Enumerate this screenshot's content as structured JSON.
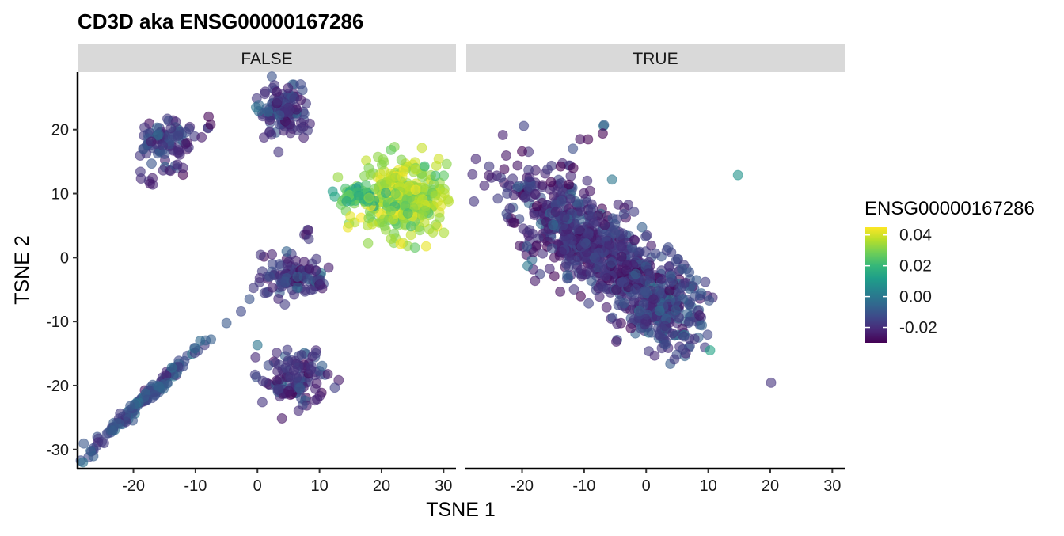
{
  "chart_data": {
    "type": "scatter",
    "title": "CD3D  aka ENSG00000167286",
    "xlabel": "TSNE 1",
    "ylabel": "TSNE 2",
    "facet_labels": [
      "FALSE",
      "TRUE"
    ],
    "xlim": [
      -29,
      32
    ],
    "ylim": [
      -33,
      29
    ],
    "x_ticks": [
      -20,
      -10,
      0,
      10,
      20,
      30
    ],
    "x_tick_labels": [
      "-20",
      "-10",
      "0",
      "10",
      "20",
      "30"
    ],
    "y_ticks": [
      -30,
      -20,
      -10,
      0,
      10,
      20
    ],
    "y_tick_labels": [
      "-30",
      "-20",
      "-10",
      "0",
      "10",
      "20"
    ],
    "grid": false,
    "legend": {
      "title": "ENSG00000167286",
      "position": "right",
      "colorscale": "viridis",
      "range": [
        -0.03,
        0.045
      ],
      "ticks": [
        0.04,
        0.02,
        0.0,
        -0.02
      ],
      "tick_labels": [
        "0.04",
        "0.02",
        "0.00",
        "-0.02"
      ],
      "colors": [
        "#440154",
        "#482878",
        "#3e4989",
        "#31688e",
        "#26828e",
        "#1f9e89",
        "#35b779",
        "#6ece58",
        "#b5de2b",
        "#fde725"
      ]
    },
    "point_opacity": 0.6,
    "panels": [
      {
        "label": "FALSE",
        "clusters": [
          {
            "cx": 4.5,
            "cy": 23,
            "sx": 1.8,
            "sy": 2.0,
            "n": 110,
            "value": -0.018
          },
          {
            "cx": 0.5,
            "cy": 23.3,
            "sx": 0.6,
            "sy": 0.5,
            "n": 6,
            "value": -0.01
          },
          {
            "cx": -15,
            "cy": 18.5,
            "sx": 2.0,
            "sy": 1.6,
            "n": 85,
            "value": -0.016
          },
          {
            "cx": -14,
            "cy": 13.8,
            "sx": 1.0,
            "sy": 0.6,
            "n": 8,
            "value": -0.02
          },
          {
            "cx": -18,
            "cy": 12.3,
            "sx": 0.8,
            "sy": 0.5,
            "n": 6,
            "value": -0.02
          },
          {
            "cx": -7.5,
            "cy": 20.4,
            "sx": 0.3,
            "sy": 0.6,
            "n": 4,
            "value": -0.025
          },
          {
            "cx": -9,
            "cy": 18.8,
            "sx": 0.2,
            "sy": 0.2,
            "n": 1,
            "value": -0.02
          },
          {
            "cx": 23.5,
            "cy": 9,
            "sx": 3.5,
            "sy": 2.8,
            "n": 320,
            "value": 0.033
          },
          {
            "cx": 16,
            "cy": 9.8,
            "sx": 2.2,
            "sy": 0.9,
            "n": 40,
            "value": 0.022
          },
          {
            "cx": 6,
            "cy": -3,
            "sx": 2.6,
            "sy": 1.6,
            "n": 110,
            "value": -0.017
          },
          {
            "cx": 8,
            "cy": 3.2,
            "sx": 0.3,
            "sy": 0.8,
            "n": 5,
            "value": -0.02
          },
          {
            "cx": 6,
            "cy": -19,
            "sx": 2.6,
            "sy": 2.2,
            "n": 120,
            "value": -0.018
          },
          {
            "cx": 0,
            "cy": -13.7,
            "sx": 0.2,
            "sy": 0.2,
            "n": 1,
            "value": -0.002
          },
          {
            "cx": -18.5,
            "cy": -22.5,
            "sx": 4.8,
            "sy": 4.5,
            "n": 150,
            "value": -0.012,
            "rho": 0.99
          }
        ]
      },
      {
        "label": "TRUE",
        "clusters": [
          {
            "cx": -9,
            "cy": 2,
            "sx": 6.8,
            "sy": 5.8,
            "n": 700,
            "value": -0.019,
            "rho": -0.72
          },
          {
            "cx": 3,
            "cy": -8,
            "sx": 3.0,
            "sy": 3.5,
            "n": 220,
            "value": -0.015
          },
          {
            "cx": -7,
            "cy": 20.5,
            "sx": 0.4,
            "sy": 0.5,
            "n": 2,
            "value": -0.01
          },
          {
            "cx": -10,
            "cy": 18.5,
            "sx": 0.5,
            "sy": 0.3,
            "n": 2,
            "value": -0.025
          },
          {
            "cx": -7,
            "cy": 19.4,
            "sx": 0.2,
            "sy": 0.2,
            "n": 1,
            "value": -0.03
          },
          {
            "cx": 14.8,
            "cy": 12.9,
            "sx": 0.1,
            "sy": 0.1,
            "n": 1,
            "value": 0.012
          },
          {
            "cx": 10.3,
            "cy": -14.5,
            "sx": 0.2,
            "sy": 0.2,
            "n": 1,
            "value": 0.006
          },
          {
            "cx": -5.5,
            "cy": 12.2,
            "sx": 0.2,
            "sy": 0.2,
            "n": 1,
            "value": 0.003
          }
        ]
      }
    ]
  }
}
